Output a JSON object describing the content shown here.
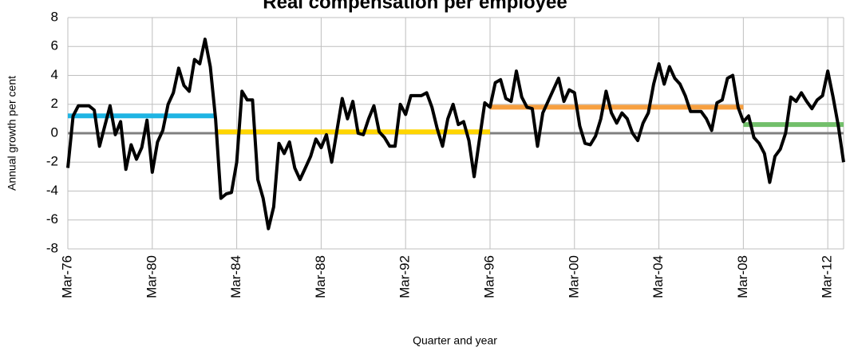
{
  "chart_data": {
    "type": "line",
    "title": "Real compensation per employee",
    "y_label": "Annual growth per cent",
    "x_label": "Quarter and year",
    "categories": [
      "Mar-76",
      null,
      null,
      null,
      null,
      null,
      null,
      null,
      null,
      null,
      null,
      null,
      null,
      null,
      null,
      null,
      "Mar-80",
      null,
      null,
      null,
      null,
      null,
      null,
      null,
      null,
      null,
      null,
      null,
      null,
      null,
      null,
      null,
      "Mar-84",
      null,
      null,
      null,
      null,
      null,
      null,
      null,
      null,
      null,
      null,
      null,
      null,
      null,
      null,
      null,
      "Mar-88",
      null,
      null,
      null,
      null,
      null,
      null,
      null,
      null,
      null,
      null,
      null,
      null,
      null,
      null,
      null,
      "Mar-92",
      null,
      null,
      null,
      null,
      null,
      null,
      null,
      null,
      null,
      null,
      null,
      null,
      null,
      null,
      null,
      "Mar-96",
      null,
      null,
      null,
      null,
      null,
      null,
      null,
      null,
      null,
      null,
      null,
      null,
      null,
      null,
      null,
      "Mar-00",
      null,
      null,
      null,
      null,
      null,
      null,
      null,
      null,
      null,
      null,
      null,
      null,
      null,
      null,
      null,
      "Mar-04",
      null,
      null,
      null,
      null,
      null,
      null,
      null,
      null,
      null,
      null,
      null,
      null,
      null,
      null,
      null,
      "Mar-08",
      null,
      null,
      null,
      null,
      null,
      null,
      null,
      null,
      null,
      null,
      null,
      null,
      null,
      null,
      null,
      "Mar-12",
      null,
      null,
      null
    ],
    "series": [
      {
        "color": "#000000",
        "values": [
          -2.4,
          1.2,
          1.9,
          1.9,
          1.9,
          1.6,
          -0.9,
          0.5,
          1.9,
          -0.1,
          0.8,
          -2.5,
          -0.8,
          -1.8,
          -1.0,
          0.9,
          -2.7,
          -0.6,
          0.2,
          2.0,
          2.8,
          4.5,
          3.3,
          2.9,
          5.1,
          4.8,
          6.5,
          4.6,
          1.0,
          -4.5,
          -4.2,
          -4.1,
          -2.0,
          2.9,
          2.3,
          2.3,
          -3.2,
          -4.5,
          -6.6,
          -5.1,
          -0.7,
          -1.4,
          -0.6,
          -2.4,
          -3.2,
          -2.4,
          -1.6,
          -0.4,
          -1.0,
          -0.1,
          -2.0,
          0.2,
          2.4,
          1.0,
          2.2,
          0.0,
          -0.1,
          1.0,
          1.9,
          0.1,
          -0.3,
          -0.9,
          -0.9,
          2.0,
          1.3,
          2.6,
          2.6,
          2.6,
          2.8,
          1.8,
          0.3,
          -0.9,
          1.0,
          2.0,
          0.6,
          0.8,
          -0.5,
          -3.0,
          -0.4,
          2.1,
          1.8,
          3.5,
          3.7,
          2.4,
          2.2,
          4.3,
          2.5,
          1.8,
          1.7,
          -0.9,
          1.4,
          2.2,
          3.0,
          3.8,
          2.2,
          3.0,
          2.8,
          0.5,
          -0.7,
          -0.8,
          -0.2,
          1.0,
          2.9,
          1.4,
          0.7,
          1.4,
          1.0,
          0.0,
          -0.5,
          0.7,
          1.4,
          3.4,
          4.8,
          3.4,
          4.6,
          3.8,
          3.4,
          2.6,
          1.5,
          1.5,
          1.5,
          1.0,
          0.2,
          2.1,
          2.3,
          3.8,
          4.0,
          1.8,
          0.8,
          1.2,
          -0.3,
          -0.7,
          -1.4,
          -3.4,
          -1.6,
          -1.1,
          0.0,
          2.5,
          2.2,
          2.8,
          2.2,
          1.7,
          2.3,
          2.6,
          4.3,
          2.5,
          0.5,
          -2.0
        ]
      }
    ],
    "segments": [
      {
        "x": [
          0,
          28
        ],
        "value": 1.2,
        "color": "#1fb4e3"
      },
      {
        "x": [
          28,
          80
        ],
        "value": 0.1,
        "color": "#ffd500"
      },
      {
        "x": [
          80,
          128
        ],
        "value": 1.8,
        "color": "#f7a040"
      },
      {
        "x": [
          128,
          147
        ],
        "value": 0.6,
        "color": "#72bf6a"
      }
    ],
    "ylim": [
      -8,
      8
    ],
    "yticks": [
      -8,
      -6,
      -4,
      -2,
      0,
      2,
      4,
      6,
      8
    ],
    "grid": true
  }
}
